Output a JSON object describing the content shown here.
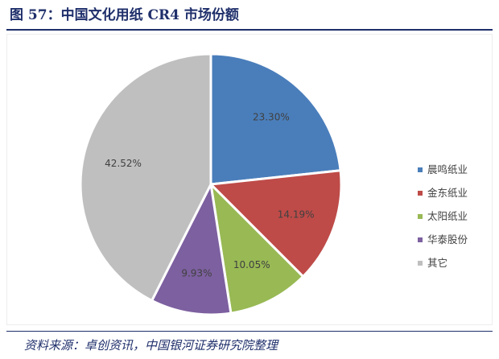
{
  "figure": {
    "title": "图 57：中国文化用纸 CR4 市场份额",
    "source": "资料来源：卓创资讯，中国银河证券研究院整理"
  },
  "chart_data": {
    "type": "pie",
    "categories": [
      "晨鸣纸业",
      "金东纸业",
      "太阳纸业",
      "华泰股份",
      "其它"
    ],
    "values": [
      23.3,
      14.19,
      10.05,
      9.93,
      42.52
    ],
    "data_labels": [
      "23.30%",
      "14.19%",
      "10.05%",
      "9.93%",
      "42.52%"
    ],
    "colors": [
      "#4a7ebb",
      "#be4b48",
      "#98b954",
      "#7d60a0",
      "#bfbfbf"
    ],
    "start": "12 o'clock",
    "direction": "clockwise",
    "legend": "right"
  }
}
